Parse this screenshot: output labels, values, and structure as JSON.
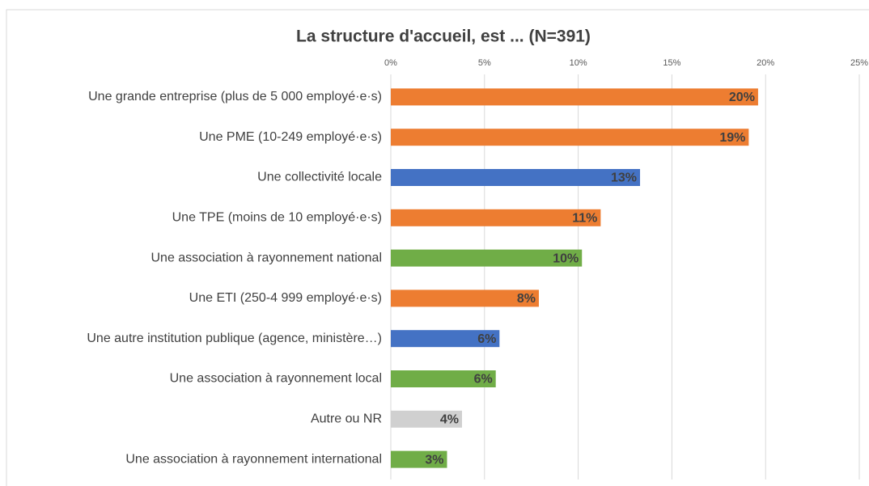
{
  "chart_data": {
    "type": "hbar",
    "title": "La structure d'accueil, est ... (N=391)",
    "categories": [
      "Une grande entreprise (plus de 5 000 employé·e·s)",
      "Une PME (10-249 employé·e·s)",
      "Une collectivité locale",
      "Une TPE (moins de 10 employé·e·s)",
      "Une association à rayonnement national",
      "Une ETI (250-4 999 employé·e·s)",
      "Une autre institution publique (agence, ministère…)",
      "Une association à rayonnement local",
      "Autre ou NR",
      "Une association à rayonnement international"
    ],
    "values": [
      19.6,
      19.1,
      13.3,
      11.2,
      10.2,
      7.9,
      5.8,
      5.6,
      3.8,
      3.0
    ],
    "value_labels": [
      "20%",
      "19%",
      "13%",
      "11%",
      "10%",
      "8%",
      "6%",
      "6%",
      "4%",
      "3%"
    ],
    "colors": [
      "#ed7d31",
      "#ed7d31",
      "#4472c4",
      "#ed7d31",
      "#70ad47",
      "#ed7d31",
      "#4472c4",
      "#70ad47",
      "#d0d0d0",
      "#70ad47"
    ],
    "xlim": [
      0,
      25
    ],
    "xticks": [
      {
        "value": 0,
        "label": "0%"
      },
      {
        "value": 5,
        "label": "5%"
      },
      {
        "value": 10,
        "label": "10%"
      },
      {
        "value": 15,
        "label": "15%"
      },
      {
        "value": 20,
        "label": "20%"
      },
      {
        "value": 25,
        "label": "25%"
      }
    ],
    "grid": true
  }
}
